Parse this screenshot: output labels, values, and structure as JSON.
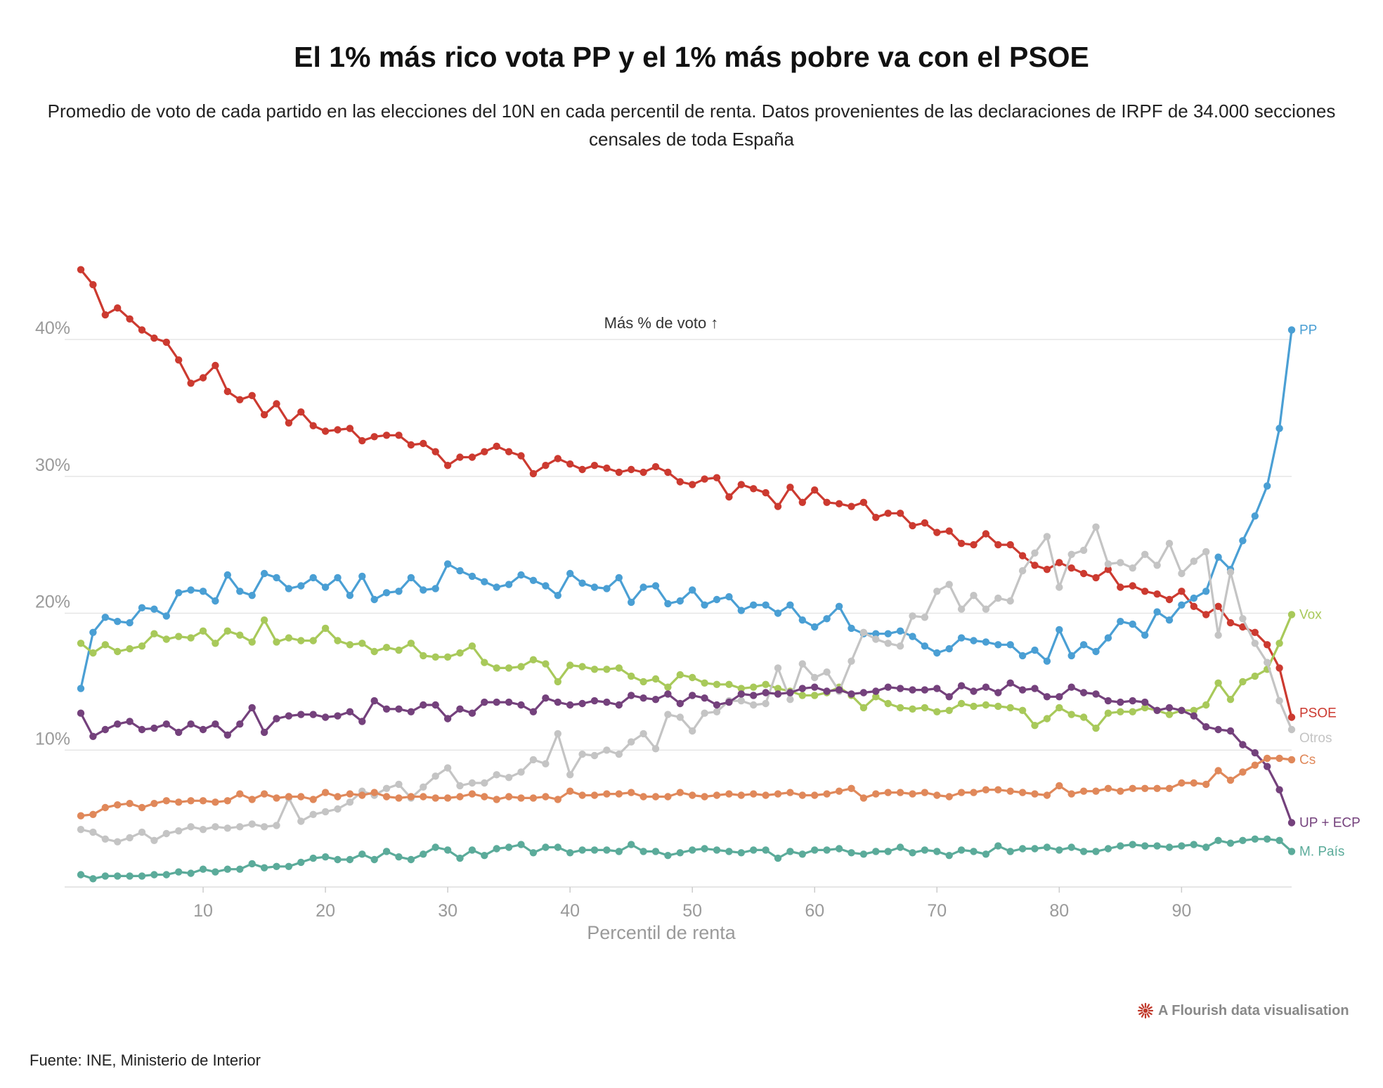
{
  "header": {
    "title": "El 1% más rico vota PP y el 1% más pobre va con el PSOE",
    "subtitle": "Promedio de voto de cada partido en las elecciones del 10N en cada percentil de renta. Datos provenientes de las declaraciones de IRPF de 34.000 secciones censales de toda España"
  },
  "footer": {
    "credit": "A Flourish data visualisation",
    "source": "Fuente: INE, Ministerio de Interior"
  },
  "icons": {
    "credit": "flourish-logo-icon"
  },
  "chart_data": {
    "type": "line",
    "title": "El 1% más rico vota PP y el 1% más pobre va con el PSOE",
    "subtitle": "Promedio de voto de cada partido en las elecciones del 10N en cada percentil de renta. Datos provenientes de las declaraciones de IRPF de 34.000 secciones censales de toda España",
    "xlabel": "Percentil de renta",
    "ylabel": "",
    "annotation": "Más % de voto ↑",
    "xlim": [
      0,
      99
    ],
    "ylim": [
      0,
      41
    ],
    "xticks": [
      10,
      20,
      30,
      40,
      50,
      60,
      70,
      80,
      90
    ],
    "yticks": [
      10,
      20,
      30,
      40
    ],
    "ytick_labels": [
      "10%",
      "20%",
      "30%",
      "40%"
    ],
    "grid": true,
    "x": [
      0,
      1,
      2,
      3,
      4,
      5,
      6,
      7,
      8,
      9,
      10,
      11,
      12,
      13,
      14,
      15,
      16,
      17,
      18,
      19,
      20,
      21,
      22,
      23,
      24,
      25,
      26,
      27,
      28,
      29,
      30,
      31,
      32,
      33,
      34,
      35,
      36,
      37,
      38,
      39,
      40,
      41,
      42,
      43,
      44,
      45,
      46,
      47,
      48,
      49,
      50,
      51,
      52,
      53,
      54,
      55,
      56,
      57,
      58,
      59,
      60,
      61,
      62,
      63,
      64,
      65,
      66,
      67,
      68,
      69,
      70,
      71,
      72,
      73,
      74,
      75,
      76,
      77,
      78,
      79,
      80,
      81,
      82,
      83,
      84,
      85,
      86,
      87,
      88,
      89,
      90,
      91,
      92,
      93,
      94,
      95,
      96,
      97,
      98,
      99
    ],
    "series": [
      {
        "name": "PSOE",
        "color": "#cc3a30",
        "values": [
          45.1,
          44.0,
          41.8,
          42.3,
          41.5,
          40.7,
          40.1,
          39.8,
          38.5,
          36.8,
          37.2,
          38.1,
          36.2,
          35.6,
          35.9,
          34.5,
          35.3,
          33.9,
          34.7,
          33.7,
          33.3,
          33.4,
          33.5,
          32.6,
          32.9,
          33.0,
          33.0,
          32.3,
          32.4,
          31.8,
          30.8,
          31.4,
          31.4,
          31.8,
          32.2,
          31.8,
          31.5,
          30.2,
          30.8,
          31.3,
          30.9,
          30.5,
          30.8,
          30.6,
          30.3,
          30.5,
          30.3,
          30.7,
          30.3,
          29.6,
          29.4,
          29.8,
          29.9,
          28.5,
          29.4,
          29.1,
          28.8,
          27.8,
          29.2,
          28.1,
          29.0,
          28.1,
          28.0,
          27.8,
          28.1,
          27.0,
          27.3,
          27.3,
          26.4,
          26.6,
          25.9,
          26.0,
          25.1,
          25.0,
          25.8,
          25.0,
          25.0,
          24.2,
          23.5,
          23.2,
          23.7,
          23.3,
          22.9,
          22.6,
          23.2,
          21.9,
          22.0,
          21.6,
          21.4,
          21.0,
          21.6,
          20.5,
          19.9,
          20.5,
          19.3,
          19.0,
          18.6,
          17.7,
          16.0,
          12.4
        ]
      },
      {
        "name": "PP",
        "color": "#4a9fd4",
        "values": [
          14.5,
          18.6,
          19.7,
          19.4,
          19.3,
          20.4,
          20.3,
          19.8,
          21.5,
          21.7,
          21.6,
          20.9,
          22.8,
          21.6,
          21.3,
          22.9,
          22.6,
          21.8,
          22.0,
          22.6,
          21.9,
          22.6,
          21.3,
          22.7,
          21.0,
          21.5,
          21.6,
          22.6,
          21.7,
          21.8,
          23.6,
          23.1,
          22.7,
          22.3,
          21.9,
          22.1,
          22.8,
          22.4,
          22.0,
          21.3,
          22.9,
          22.2,
          21.9,
          21.8,
          22.6,
          20.8,
          21.9,
          22.0,
          20.7,
          20.9,
          21.7,
          20.6,
          21.0,
          21.2,
          20.2,
          20.6,
          20.6,
          20.0,
          20.6,
          19.5,
          19.0,
          19.6,
          20.5,
          18.9,
          18.5,
          18.5,
          18.5,
          18.7,
          18.3,
          17.6,
          17.1,
          17.4,
          18.2,
          18.0,
          17.9,
          17.7,
          17.7,
          16.9,
          17.3,
          16.5,
          18.8,
          16.9,
          17.7,
          17.2,
          18.2,
          19.4,
          19.2,
          18.4,
          20.1,
          19.5,
          20.6,
          21.1,
          21.6,
          24.1,
          23.2,
          25.3,
          27.1,
          29.3,
          33.5,
          40.7
        ]
      },
      {
        "name": "Vox",
        "color": "#a8c95a",
        "values": [
          17.8,
          17.1,
          17.7,
          17.2,
          17.4,
          17.6,
          18.5,
          18.1,
          18.3,
          18.2,
          18.7,
          17.8,
          18.7,
          18.4,
          17.9,
          19.5,
          17.9,
          18.2,
          18.0,
          18.0,
          18.9,
          18.0,
          17.7,
          17.8,
          17.2,
          17.5,
          17.3,
          17.8,
          16.9,
          16.8,
          16.8,
          17.1,
          17.6,
          16.4,
          16.0,
          16.0,
          16.1,
          16.6,
          16.3,
          15.0,
          16.2,
          16.1,
          15.9,
          15.9,
          16.0,
          15.4,
          15.0,
          15.2,
          14.6,
          15.5,
          15.3,
          14.9,
          14.8,
          14.8,
          14.5,
          14.6,
          14.8,
          14.5,
          14.3,
          14.0,
          14.0,
          14.2,
          14.6,
          14.0,
          13.1,
          13.9,
          13.4,
          13.1,
          13.0,
          13.1,
          12.8,
          12.9,
          13.4,
          13.2,
          13.3,
          13.2,
          13.1,
          12.9,
          11.8,
          12.3,
          13.1,
          12.6,
          12.4,
          11.6,
          12.7,
          12.8,
          12.8,
          13.1,
          12.9,
          12.6,
          12.9,
          12.9,
          13.3,
          14.9,
          13.7,
          15.0,
          15.4,
          15.9,
          17.8,
          19.9
        ]
      },
      {
        "name": "Otros",
        "color": "#c4c4c4",
        "values": [
          4.2,
          4.0,
          3.5,
          3.3,
          3.6,
          4.0,
          3.4,
          3.9,
          4.1,
          4.4,
          4.2,
          4.4,
          4.3,
          4.4,
          4.6,
          4.4,
          4.5,
          6.5,
          4.8,
          5.3,
          5.5,
          5.7,
          6.2,
          7.0,
          6.7,
          7.2,
          7.5,
          6.5,
          7.3,
          8.1,
          8.7,
          7.4,
          7.6,
          7.6,
          8.2,
          8.0,
          8.4,
          9.3,
          9.0,
          11.2,
          8.2,
          9.7,
          9.6,
          10.0,
          9.7,
          10.6,
          11.2,
          10.1,
          12.6,
          12.4,
          11.4,
          12.7,
          12.8,
          13.6,
          13.6,
          13.3,
          13.4,
          16.0,
          13.7,
          16.3,
          15.3,
          15.7,
          14.3,
          16.5,
          18.6,
          18.1,
          17.8,
          17.6,
          19.8,
          19.7,
          21.6,
          22.1,
          20.3,
          21.3,
          20.3,
          21.1,
          20.9,
          23.1,
          24.4,
          25.6,
          21.9,
          24.3,
          24.6,
          26.3,
          23.6,
          23.7,
          23.3,
          24.3,
          23.5,
          25.1,
          22.9,
          23.8,
          24.5,
          18.4,
          23.0,
          19.6,
          17.8,
          16.4,
          13.6,
          11.5
        ]
      },
      {
        "name": "UP + ECP",
        "color": "#74417c",
        "values": [
          12.7,
          11.0,
          11.5,
          11.9,
          12.1,
          11.5,
          11.6,
          11.9,
          11.3,
          11.9,
          11.5,
          11.9,
          11.1,
          11.9,
          13.1,
          11.3,
          12.3,
          12.5,
          12.6,
          12.6,
          12.4,
          12.5,
          12.8,
          12.1,
          13.6,
          13.0,
          13.0,
          12.8,
          13.3,
          13.3,
          12.3,
          13.0,
          12.7,
          13.5,
          13.5,
          13.5,
          13.3,
          12.8,
          13.8,
          13.5,
          13.3,
          13.4,
          13.6,
          13.5,
          13.3,
          14.0,
          13.8,
          13.7,
          14.1,
          13.4,
          14.0,
          13.8,
          13.3,
          13.5,
          14.1,
          14.0,
          14.2,
          14.1,
          14.2,
          14.5,
          14.6,
          14.3,
          14.4,
          14.1,
          14.2,
          14.3,
          14.6,
          14.5,
          14.4,
          14.4,
          14.5,
          13.9,
          14.7,
          14.3,
          14.6,
          14.2,
          14.9,
          14.4,
          14.5,
          13.9,
          13.9,
          14.6,
          14.2,
          14.1,
          13.6,
          13.5,
          13.6,
          13.5,
          12.9,
          13.1,
          12.9,
          12.5,
          11.7,
          11.5,
          11.4,
          10.4,
          9.8,
          8.8,
          7.1,
          4.7
        ]
      },
      {
        "name": "Cs",
        "color": "#e0885a",
        "values": [
          5.2,
          5.3,
          5.8,
          6.0,
          6.1,
          5.8,
          6.1,
          6.3,
          6.2,
          6.3,
          6.3,
          6.2,
          6.3,
          6.8,
          6.4,
          6.8,
          6.5,
          6.6,
          6.6,
          6.4,
          6.9,
          6.6,
          6.8,
          6.7,
          6.9,
          6.6,
          6.5,
          6.6,
          6.6,
          6.5,
          6.5,
          6.6,
          6.8,
          6.6,
          6.4,
          6.6,
          6.5,
          6.5,
          6.6,
          6.4,
          7.0,
          6.7,
          6.7,
          6.8,
          6.8,
          6.9,
          6.6,
          6.6,
          6.6,
          6.9,
          6.7,
          6.6,
          6.7,
          6.8,
          6.7,
          6.8,
          6.7,
          6.8,
          6.9,
          6.7,
          6.7,
          6.8,
          7.0,
          7.2,
          6.5,
          6.8,
          6.9,
          6.9,
          6.8,
          6.9,
          6.7,
          6.6,
          6.9,
          6.9,
          7.1,
          7.1,
          7.0,
          6.9,
          6.8,
          6.7,
          7.4,
          6.8,
          7.0,
          7.0,
          7.2,
          7.0,
          7.2,
          7.2,
          7.2,
          7.2,
          7.6,
          7.6,
          7.5,
          8.5,
          7.8,
          8.4,
          8.9,
          9.4,
          9.4,
          9.3
        ]
      },
      {
        "name": "M. País",
        "color": "#5bab9a",
        "values": [
          0.9,
          0.6,
          0.8,
          0.8,
          0.8,
          0.8,
          0.9,
          0.9,
          1.1,
          1.0,
          1.3,
          1.1,
          1.3,
          1.3,
          1.7,
          1.4,
          1.5,
          1.5,
          1.8,
          2.1,
          2.2,
          2.0,
          2.0,
          2.4,
          2.0,
          2.6,
          2.2,
          2.0,
          2.4,
          2.9,
          2.7,
          2.1,
          2.7,
          2.3,
          2.8,
          2.9,
          3.1,
          2.5,
          2.9,
          2.9,
          2.5,
          2.7,
          2.7,
          2.7,
          2.6,
          3.1,
          2.6,
          2.6,
          2.3,
          2.5,
          2.7,
          2.8,
          2.7,
          2.6,
          2.5,
          2.7,
          2.7,
          2.1,
          2.6,
          2.4,
          2.7,
          2.7,
          2.8,
          2.5,
          2.4,
          2.6,
          2.6,
          2.9,
          2.5,
          2.7,
          2.6,
          2.3,
          2.7,
          2.6,
          2.4,
          3.0,
          2.6,
          2.8,
          2.8,
          2.9,
          2.7,
          2.9,
          2.6,
          2.6,
          2.8,
          3.0,
          3.1,
          3.0,
          3.0,
          2.9,
          3.0,
          3.1,
          2.9,
          3.4,
          3.2,
          3.4,
          3.5,
          3.5,
          3.4,
          2.6
        ]
      }
    ]
  }
}
